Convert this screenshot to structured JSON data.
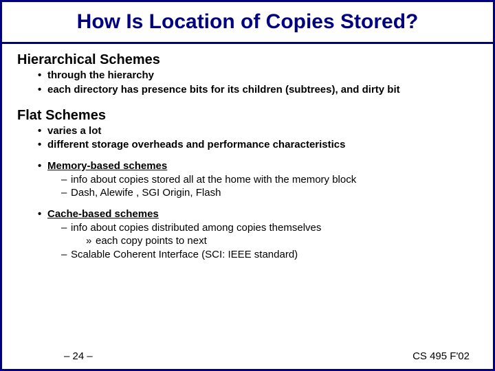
{
  "slide": {
    "title": "How Is Location of Copies Stored?",
    "border_color": "#000080",
    "title_color": "#000080",
    "text_color": "#000000",
    "background_color": "#ffffff",
    "title_fontsize": 30,
    "heading_fontsize": 20,
    "body_fontsize": 15,
    "sections": {
      "hierarchical": {
        "heading": "Hierarchical Schemes",
        "bullets": [
          "through the hierarchy",
          "each directory has presence bits for its children (subtrees), and dirty bit"
        ]
      },
      "flat": {
        "heading": "Flat Schemes",
        "intro_bullets": [
          "varies a lot",
          "different storage overheads and performance characteristics"
        ],
        "memory": {
          "label": "Memory-based schemes",
          "sub": [
            "info about copies stored all at the home with the memory block",
            "Dash, Alewife , SGI Origin, Flash"
          ]
        },
        "cache": {
          "label": "Cache-based schemes",
          "sub1": "info about copies distributed among copies themselves",
          "sub1a": "each copy  points to next",
          "sub2": "Scalable Coherent Interface (SCI: IEEE standard)"
        }
      }
    },
    "footer": {
      "page": "– 24 –",
      "course": "CS 495 F'02"
    }
  }
}
